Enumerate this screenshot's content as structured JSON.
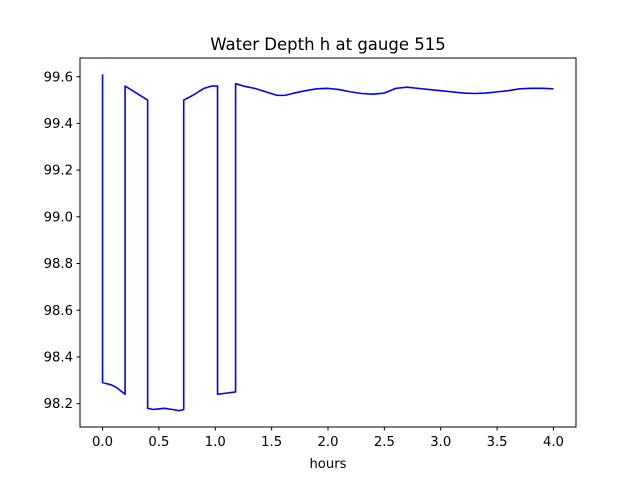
{
  "chart_data": {
    "type": "line",
    "title": "Water Depth h at gauge 515",
    "xlabel": "hours",
    "ylabel": "",
    "xlim": [
      -0.2,
      4.2
    ],
    "ylim": [
      98.1,
      99.68
    ],
    "xticks": [
      0.0,
      0.5,
      1.0,
      1.5,
      2.0,
      2.5,
      3.0,
      3.5,
      4.0
    ],
    "xtick_labels": [
      "0.0",
      "0.5",
      "1.0",
      "1.5",
      "2.0",
      "2.5",
      "3.0",
      "3.5",
      "4.0"
    ],
    "yticks": [
      98.2,
      98.4,
      98.6,
      98.8,
      99.0,
      99.2,
      99.4,
      99.6
    ],
    "ytick_labels": [
      "98.2",
      "98.4",
      "98.6",
      "98.8",
      "99.0",
      "99.2",
      "99.4",
      "99.6"
    ],
    "grid": false,
    "series": [
      {
        "color": "#0000ff",
        "x": [
          0.0,
          0.0,
          0.08,
          0.12,
          0.2,
          0.2,
          0.3,
          0.4,
          0.4,
          0.45,
          0.55,
          0.62,
          0.68,
          0.72,
          0.72,
          0.8,
          0.9,
          0.97,
          1.02,
          1.02,
          1.1,
          1.18,
          1.18,
          1.25,
          1.35,
          1.45,
          1.55,
          1.62,
          1.7,
          1.8,
          1.9,
          2.0,
          2.1,
          2.2,
          2.3,
          2.4,
          2.5,
          2.55,
          2.6,
          2.7,
          2.8,
          2.9,
          3.0,
          3.1,
          3.2,
          3.3,
          3.4,
          3.5,
          3.6,
          3.7,
          3.8,
          3.9,
          4.0
        ],
        "y": [
          99.61,
          98.29,
          98.28,
          98.27,
          98.24,
          99.56,
          99.53,
          99.5,
          98.18,
          98.175,
          98.18,
          98.175,
          98.17,
          98.175,
          99.5,
          99.52,
          99.55,
          99.56,
          99.56,
          98.24,
          98.245,
          98.25,
          99.57,
          99.56,
          99.55,
          99.535,
          99.52,
          99.52,
          99.53,
          99.54,
          99.548,
          99.55,
          99.545,
          99.535,
          99.528,
          99.525,
          99.53,
          99.54,
          99.55,
          99.555,
          99.55,
          99.545,
          99.54,
          99.535,
          99.53,
          99.528,
          99.53,
          99.535,
          99.54,
          99.548,
          99.55,
          99.55,
          99.548
        ]
      }
    ]
  }
}
